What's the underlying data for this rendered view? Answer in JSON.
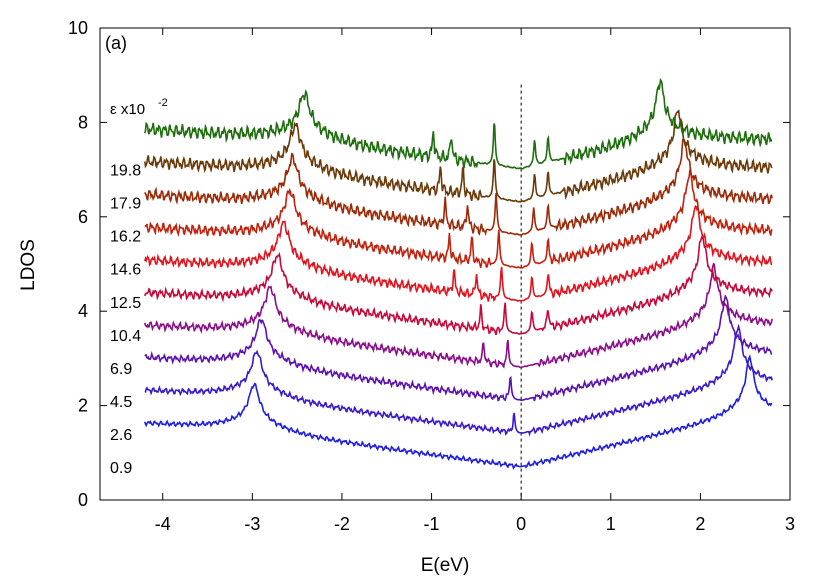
{
  "chart_data": {
    "type": "line",
    "panel_label": "(a)",
    "xlabel": "E(eV)",
    "ylabel": "LDOS",
    "xlim": [
      -4.7,
      3.0
    ],
    "ylim": [
      0,
      10
    ],
    "x_ticks": [
      "-4",
      "-3",
      "-2",
      "-1",
      "0",
      "1",
      "2",
      "3"
    ],
    "y_ticks": [
      "0",
      "2",
      "4",
      "6",
      "8",
      "10"
    ],
    "x_range_data": [
      -4.2,
      2.8
    ],
    "reference_line_x": 0,
    "legend_title": "ε  x10",
    "legend_exponent": "-2",
    "series": [
      {
        "name": "0.9",
        "offset": 0.0,
        "color": "#1f1fe0",
        "left_peak": -2.98,
        "right_peak": 2.55,
        "gap_peaks": []
      },
      {
        "name": "2.6",
        "offset": 0.7,
        "color": "#3a18cc",
        "left_peak": -2.95,
        "right_peak": 2.42,
        "gap_peaks": [
          -0.08
        ]
      },
      {
        "name": "4.5",
        "offset": 1.4,
        "color": "#5a12b0",
        "left_peak": -2.9,
        "right_peak": 2.28,
        "gap_peaks": [
          -0.12
        ]
      },
      {
        "name": "6.9",
        "offset": 2.1,
        "color": "#8a0e8a",
        "left_peak": -2.8,
        "right_peak": 2.15,
        "gap_peaks": [
          -0.15,
          -0.42
        ]
      },
      {
        "name": "10.4",
        "offset": 2.8,
        "color": "#c40a3a",
        "left_peak": -2.72,
        "right_peak": 2.02,
        "gap_peaks": [
          -0.18,
          -0.45,
          0.12,
          0.3
        ]
      },
      {
        "name": "12.5",
        "offset": 3.5,
        "color": "#e0141e",
        "left_peak": -2.65,
        "right_peak": 1.95,
        "gap_peaks": [
          -0.22,
          -0.5,
          0.12,
          0.3,
          -0.75
        ]
      },
      {
        "name": "14.6",
        "offset": 4.2,
        "color": "#c0220e",
        "left_peak": -2.58,
        "right_peak": 1.88,
        "gap_peaks": [
          -0.25,
          -0.55,
          0.12,
          0.3,
          -0.8
        ]
      },
      {
        "name": "16.2",
        "offset": 4.9,
        "color": "#9a2a08",
        "left_peak": -2.55,
        "right_peak": 1.82,
        "gap_peaks": [
          -0.28,
          -0.6,
          0.14,
          0.3,
          -0.85
        ]
      },
      {
        "name": "17.9",
        "offset": 5.6,
        "color": "#6a3a08",
        "left_peak": -2.52,
        "right_peak": 1.75,
        "gap_peaks": [
          -0.3,
          -0.65,
          0.15,
          0.3,
          -0.9
        ]
      },
      {
        "name": "19.8",
        "offset": 6.3,
        "color": "#1e6e0e",
        "left_peak": -2.42,
        "right_peak": 1.55,
        "gap_peaks": [
          -0.3,
          -0.78,
          0.15,
          0.3,
          -0.98
        ]
      }
    ]
  }
}
